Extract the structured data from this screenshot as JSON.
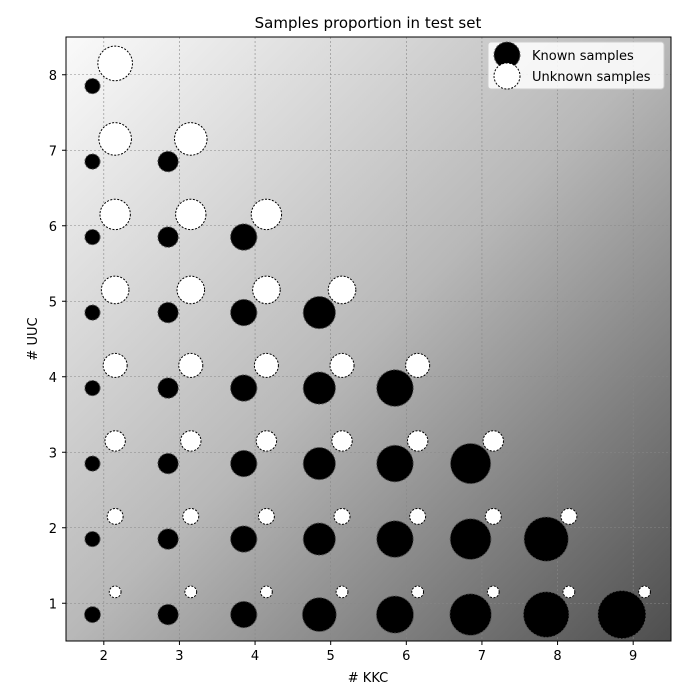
{
  "chart_data": {
    "type": "scatter",
    "title": "Samples proportion in test set",
    "xlabel": "# KKC",
    "ylabel": "# UUC",
    "xlim": [
      1.5,
      9.5
    ],
    "ylim": [
      0.5,
      8.5
    ],
    "xticks": [
      2,
      3,
      4,
      5,
      6,
      7,
      8,
      9
    ],
    "yticks": [
      1,
      2,
      3,
      4,
      5,
      6,
      7,
      8
    ],
    "grid": true,
    "legend": "top-right",
    "marker_size_encoding": "proportion",
    "series": [
      {
        "name": "Known samples",
        "color": "#000000",
        "points": [
          {
            "x": 1.85,
            "y": 0.85,
            "size": 0.111
          },
          {
            "x": 2.85,
            "y": 0.85,
            "size": 0.182
          },
          {
            "x": 3.85,
            "y": 0.85,
            "size": 0.3
          },
          {
            "x": 4.85,
            "y": 0.85,
            "size": 0.5
          },
          {
            "x": 5.85,
            "y": 0.85,
            "size": 0.6
          },
          {
            "x": 6.85,
            "y": 0.85,
            "size": 0.75
          },
          {
            "x": 7.85,
            "y": 0.85,
            "size": 0.9
          },
          {
            "x": 8.85,
            "y": 0.85,
            "size": 1.0
          },
          {
            "x": 1.85,
            "y": 1.85,
            "size": 0.1
          },
          {
            "x": 2.85,
            "y": 1.85,
            "size": 0.182
          },
          {
            "x": 3.85,
            "y": 1.85,
            "size": 0.3
          },
          {
            "x": 4.85,
            "y": 1.85,
            "size": 0.45
          },
          {
            "x": 5.85,
            "y": 1.85,
            "size": 0.58
          },
          {
            "x": 6.85,
            "y": 1.85,
            "size": 0.72
          },
          {
            "x": 7.85,
            "y": 1.85,
            "size": 0.85
          },
          {
            "x": 1.85,
            "y": 2.85,
            "size": 0.1
          },
          {
            "x": 2.85,
            "y": 2.85,
            "size": 0.18
          },
          {
            "x": 3.85,
            "y": 2.85,
            "size": 0.3
          },
          {
            "x": 4.85,
            "y": 2.85,
            "size": 0.45
          },
          {
            "x": 5.85,
            "y": 2.85,
            "size": 0.58
          },
          {
            "x": 6.85,
            "y": 2.85,
            "size": 0.7
          },
          {
            "x": 1.85,
            "y": 3.85,
            "size": 0.1
          },
          {
            "x": 2.85,
            "y": 3.85,
            "size": 0.18
          },
          {
            "x": 3.85,
            "y": 3.85,
            "size": 0.3
          },
          {
            "x": 4.85,
            "y": 3.85,
            "size": 0.45
          },
          {
            "x": 5.85,
            "y": 3.85,
            "size": 0.58
          },
          {
            "x": 1.85,
            "y": 4.85,
            "size": 0.1
          },
          {
            "x": 2.85,
            "y": 4.85,
            "size": 0.18
          },
          {
            "x": 3.85,
            "y": 4.85,
            "size": 0.3
          },
          {
            "x": 4.85,
            "y": 4.85,
            "size": 0.45
          },
          {
            "x": 1.85,
            "y": 5.85,
            "size": 0.1
          },
          {
            "x": 2.85,
            "y": 5.85,
            "size": 0.18
          },
          {
            "x": 3.85,
            "y": 5.85,
            "size": 0.3
          },
          {
            "x": 1.85,
            "y": 6.85,
            "size": 0.1
          },
          {
            "x": 2.85,
            "y": 6.85,
            "size": 0.18
          },
          {
            "x": 1.85,
            "y": 7.85,
            "size": 0.1
          }
        ]
      },
      {
        "name": "Unknown samples",
        "color": "#ffffff",
        "points": [
          {
            "x": 2.15,
            "y": 1.15,
            "size": 0.06
          },
          {
            "x": 3.15,
            "y": 1.15,
            "size": 0.06
          },
          {
            "x": 4.15,
            "y": 1.15,
            "size": 0.06
          },
          {
            "x": 5.15,
            "y": 1.15,
            "size": 0.06
          },
          {
            "x": 6.15,
            "y": 1.15,
            "size": 0.06
          },
          {
            "x": 7.15,
            "y": 1.15,
            "size": 0.06
          },
          {
            "x": 8.15,
            "y": 1.15,
            "size": 0.06
          },
          {
            "x": 9.15,
            "y": 1.15,
            "size": 0.06
          },
          {
            "x": 2.15,
            "y": 2.15,
            "size": 0.11
          },
          {
            "x": 3.15,
            "y": 2.15,
            "size": 0.11
          },
          {
            "x": 4.15,
            "y": 2.15,
            "size": 0.11
          },
          {
            "x": 5.15,
            "y": 2.15,
            "size": 0.11
          },
          {
            "x": 6.15,
            "y": 2.15,
            "size": 0.11
          },
          {
            "x": 7.15,
            "y": 2.15,
            "size": 0.11
          },
          {
            "x": 8.15,
            "y": 2.15,
            "size": 0.11
          },
          {
            "x": 2.15,
            "y": 3.15,
            "size": 0.18
          },
          {
            "x": 3.15,
            "y": 3.15,
            "size": 0.18
          },
          {
            "x": 4.15,
            "y": 3.15,
            "size": 0.18
          },
          {
            "x": 5.15,
            "y": 3.15,
            "size": 0.18
          },
          {
            "x": 6.15,
            "y": 3.15,
            "size": 0.18
          },
          {
            "x": 7.15,
            "y": 3.15,
            "size": 0.18
          },
          {
            "x": 2.15,
            "y": 4.15,
            "size": 0.25
          },
          {
            "x": 3.15,
            "y": 4.15,
            "size": 0.25
          },
          {
            "x": 4.15,
            "y": 4.15,
            "size": 0.25
          },
          {
            "x": 5.15,
            "y": 4.15,
            "size": 0.25
          },
          {
            "x": 6.15,
            "y": 4.15,
            "size": 0.25
          },
          {
            "x": 2.15,
            "y": 5.15,
            "size": 0.33
          },
          {
            "x": 3.15,
            "y": 5.15,
            "size": 0.33
          },
          {
            "x": 4.15,
            "y": 5.15,
            "size": 0.33
          },
          {
            "x": 5.15,
            "y": 5.15,
            "size": 0.33
          },
          {
            "x": 2.15,
            "y": 6.15,
            "size": 0.4
          },
          {
            "x": 3.15,
            "y": 6.15,
            "size": 0.4
          },
          {
            "x": 4.15,
            "y": 6.15,
            "size": 0.4
          },
          {
            "x": 2.15,
            "y": 7.15,
            "size": 0.46
          },
          {
            "x": 3.15,
            "y": 7.15,
            "size": 0.46
          },
          {
            "x": 2.15,
            "y": 8.15,
            "size": 0.52
          }
        ]
      }
    ]
  }
}
